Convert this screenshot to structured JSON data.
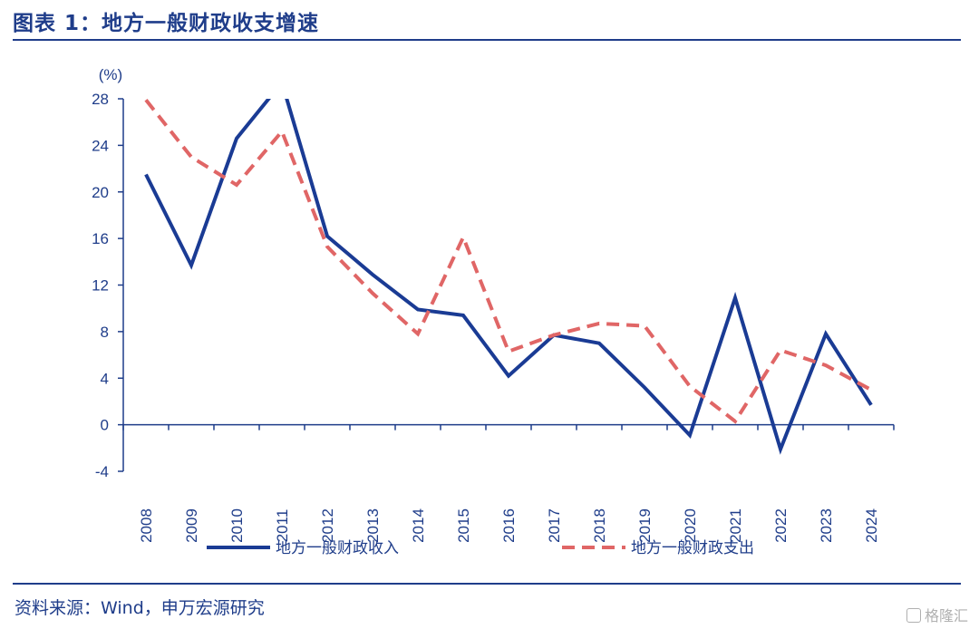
{
  "header": {
    "title": "图表 1：地方一般财政收支增速"
  },
  "footer": {
    "source": "资料来源：Wind，申万宏源研究",
    "watermark": "格隆汇"
  },
  "colors": {
    "brand": "#1f3d8a",
    "series_revenue": "#1a3b94",
    "series_expenditure": "#e06666"
  },
  "chart_data": {
    "type": "line",
    "title": "",
    "ylabel": "(%)",
    "xlabel": "",
    "ylim": [
      -4,
      28
    ],
    "yticks": [
      -4,
      0,
      4,
      8,
      12,
      16,
      20,
      24,
      28
    ],
    "grid": false,
    "legend_position": "bottom",
    "categories": [
      "2008",
      "2009",
      "2010",
      "2011",
      "2012",
      "2013",
      "2014",
      "2015",
      "2016",
      "2017",
      "2018",
      "2019",
      "2020",
      "2021",
      "2022",
      "2023",
      "2024"
    ],
    "series": [
      {
        "name": "地方一般财政收入",
        "style": "solid",
        "values": [
          21.5,
          13.7,
          24.6,
          29.4,
          16.2,
          12.9,
          9.9,
          9.4,
          4.2,
          7.7,
          7.0,
          3.2,
          -0.9,
          10.9,
          -2.1,
          7.8,
          1.7
        ]
      },
      {
        "name": "地方一般财政支出",
        "style": "dashed",
        "values": [
          27.9,
          23.0,
          20.6,
          25.2,
          15.3,
          11.3,
          7.8,
          16.1,
          6.3,
          7.7,
          8.7,
          8.5,
          3.3,
          0.3,
          6.4,
          5.1,
          3.0
        ]
      }
    ]
  }
}
